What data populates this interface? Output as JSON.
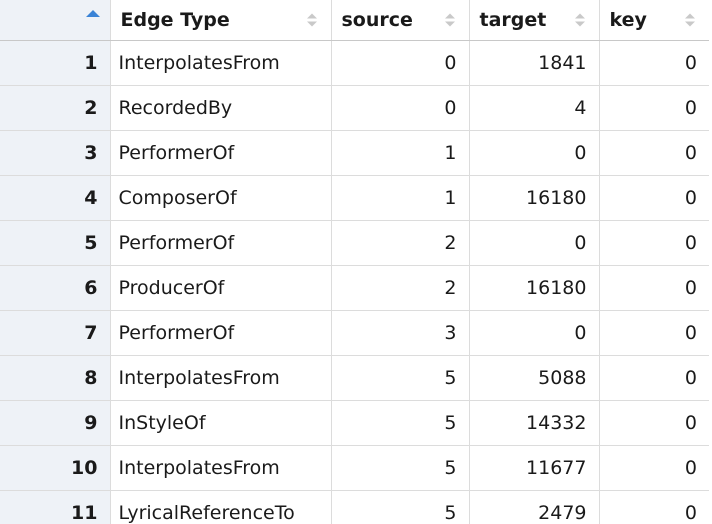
{
  "columns": [
    {
      "key": "index",
      "label": ""
    },
    {
      "key": "edge_type",
      "label": "Edge Type"
    },
    {
      "key": "source",
      "label": "source"
    },
    {
      "key": "target",
      "label": "target"
    },
    {
      "key": "key",
      "label": "key"
    }
  ],
  "sort": {
    "column": "index",
    "direction": "ascending"
  },
  "rows": [
    {
      "index": "1",
      "edge_type": "InterpolatesFrom",
      "source": "0",
      "target": "1841",
      "key": "0"
    },
    {
      "index": "2",
      "edge_type": "RecordedBy",
      "source": "0",
      "target": "4",
      "key": "0"
    },
    {
      "index": "3",
      "edge_type": "PerformerOf",
      "source": "1",
      "target": "0",
      "key": "0"
    },
    {
      "index": "4",
      "edge_type": "ComposerOf",
      "source": "1",
      "target": "16180",
      "key": "0"
    },
    {
      "index": "5",
      "edge_type": "PerformerOf",
      "source": "2",
      "target": "0",
      "key": "0"
    },
    {
      "index": "6",
      "edge_type": "ProducerOf",
      "source": "2",
      "target": "16180",
      "key": "0"
    },
    {
      "index": "7",
      "edge_type": "PerformerOf",
      "source": "3",
      "target": "0",
      "key": "0"
    },
    {
      "index": "8",
      "edge_type": "InterpolatesFrom",
      "source": "5",
      "target": "5088",
      "key": "0"
    },
    {
      "index": "9",
      "edge_type": "InStyleOf",
      "source": "5",
      "target": "14332",
      "key": "0"
    },
    {
      "index": "10",
      "edge_type": "InterpolatesFrom",
      "source": "5",
      "target": "11677",
      "key": "0"
    },
    {
      "index": "11",
      "edge_type": "LyricalReferenceTo",
      "source": "5",
      "target": "2479",
      "key": "0"
    }
  ],
  "colors": {
    "sort_active": "#3a83d6",
    "sort_inactive": "#c9c9c9",
    "index_background": "#eef2f7",
    "grid_line": "#dcdcdc"
  },
  "icons": {
    "sort_active": "sort-ascending-icon",
    "sort_inactive": "sort-both-icon"
  }
}
